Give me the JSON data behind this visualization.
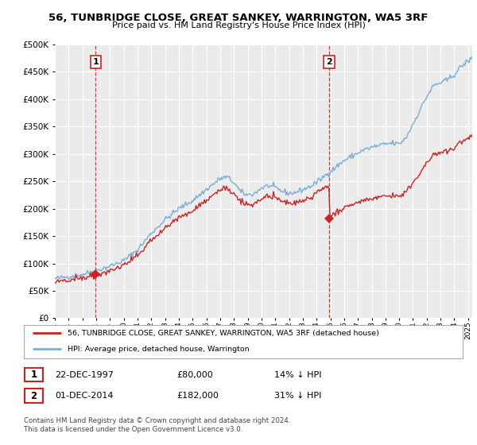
{
  "title": "56, TUNBRIDGE CLOSE, GREAT SANKEY, WARRINGTON, WA5 3RF",
  "subtitle": "Price paid vs. HM Land Registry's House Price Index (HPI)",
  "legend_line1": "56, TUNBRIDGE CLOSE, GREAT SANKEY, WARRINGTON, WA5 3RF (detached house)",
  "legend_line2": "HPI: Average price, detached house, Warrington",
  "sale1_date": "22-DEC-1997",
  "sale1_price": 80000,
  "sale1_hpi": "14% ↓ HPI",
  "sale2_date": "01-DEC-2014",
  "sale2_price": 182000,
  "sale2_hpi": "31% ↓ HPI",
  "footnote": "Contains HM Land Registry data © Crown copyright and database right 2024.\nThis data is licensed under the Open Government Licence v3.0.",
  "hpi_color": "#7aadd4",
  "price_color": "#cc2222",
  "dashed_color": "#cc2222",
  "background_color": "#ebebeb",
  "ylim": [
    0,
    500000
  ],
  "yticks": [
    0,
    50000,
    100000,
    150000,
    200000,
    250000,
    300000,
    350000,
    400000,
    450000,
    500000
  ],
  "sale1_x": 1997.96,
  "sale2_x": 2014.92,
  "xlim_left": 1995.0,
  "xlim_right": 2025.3
}
